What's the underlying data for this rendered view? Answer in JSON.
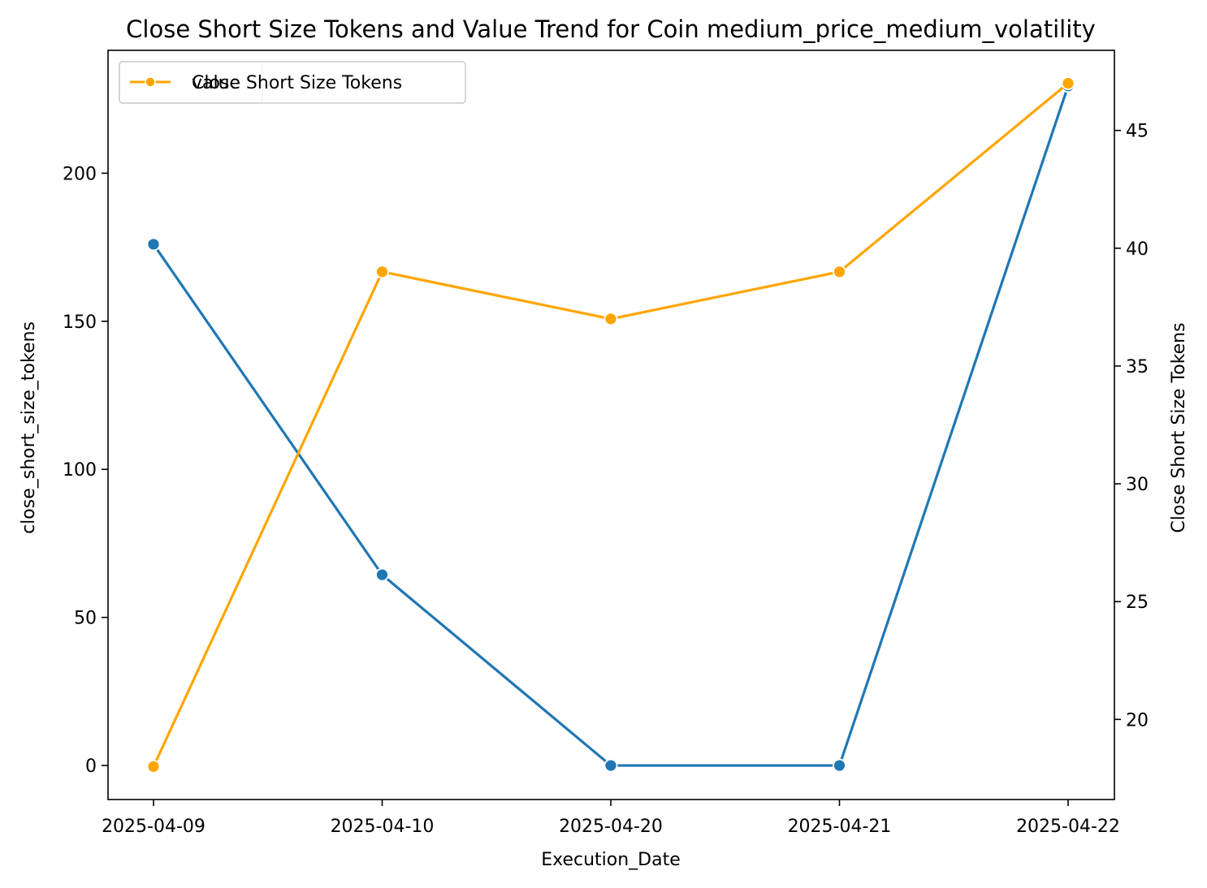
{
  "chart_data": {
    "type": "line",
    "title": "Close Short Size Tokens and Value Trend for Coin medium_price_medium_volatility",
    "xlabel": "Execution_Date",
    "ylabel_left": "close_short_size_tokens",
    "ylabel_right": "Close Short Size Tokens",
    "categories": [
      "2025-04-09",
      "2025-04-10",
      "2025-04-20",
      "2025-04-21",
      "2025-04-22"
    ],
    "ylim_left": [
      -11.5,
      241.5
    ],
    "ylim_right": [
      16.6,
      48.4
    ],
    "yticks_left": [
      0,
      50,
      100,
      150,
      200
    ],
    "yticks_right": [
      20,
      25,
      30,
      35,
      40,
      45
    ],
    "series": [
      {
        "name": "value",
        "axis": "left",
        "color": "#1f77b4",
        "values": [
          176,
          64.4,
          0,
          0,
          229.5
        ]
      },
      {
        "name": "Close Short Size Tokens",
        "axis": "right",
        "color": "#FFA500",
        "values": [
          18,
          39,
          37,
          39,
          47
        ]
      }
    ],
    "legend": {
      "placement": "upper-left",
      "entries": [
        "Close Short Size Tokens",
        "value"
      ],
      "overlapping": true
    },
    "grid": false
  }
}
